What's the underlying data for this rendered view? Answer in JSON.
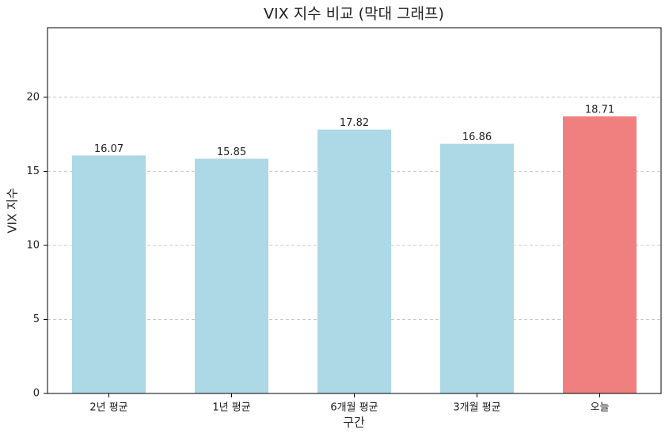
{
  "chart_data": {
    "type": "bar",
    "title": "VIX 지수 비교 (막대 그래프)",
    "x_label": "구간",
    "y_label": "VIX 지수",
    "categories": [
      "2년 평균",
      "1년 평균",
      "6개월 평균",
      "3개월 평균",
      "오늘"
    ],
    "values": [
      16.07,
      15.85,
      17.82,
      16.86,
      18.71
    ],
    "colors": [
      "#add8e6",
      "#add8e6",
      "#add8e6",
      "#add8e6",
      "#f08080"
    ],
    "ylim": [
      0,
      24.7
    ],
    "yticks": [
      0,
      5,
      10,
      15,
      20
    ],
    "grid": true
  }
}
